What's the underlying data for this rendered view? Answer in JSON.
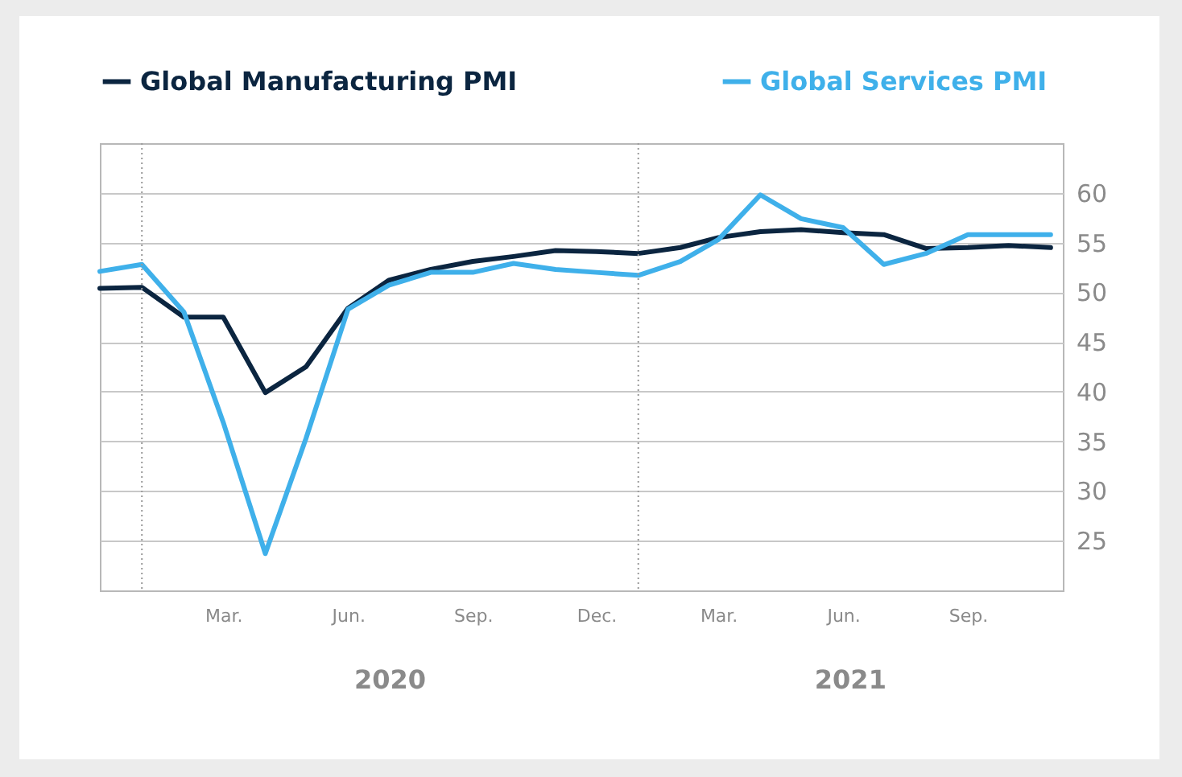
{
  "chart_data": {
    "type": "line",
    "x": [
      "2019-12",
      "2020-01",
      "2020-02",
      "2020-03",
      "2020-04",
      "2020-05",
      "2020-06",
      "2020-07",
      "2020-08",
      "2020-09",
      "2020-10",
      "2020-11",
      "2020-12",
      "2021-01",
      "2021-02",
      "2021-03",
      "2021-04",
      "2021-05",
      "2021-06",
      "2021-07",
      "2021-08",
      "2021-09",
      "2021-10",
      "2021-11"
    ],
    "series": [
      {
        "name": "Global Manufacturing PMI",
        "color": "#0b2540",
        "values": [
          50.4,
          50.5,
          47.5,
          47.5,
          39.9,
          42.5,
          48.4,
          51.2,
          52.3,
          53.1,
          53.6,
          54.2,
          54.1,
          53.9,
          54.5,
          55.5,
          56.1,
          56.3,
          56.0,
          55.8,
          54.4,
          54.5,
          54.7,
          54.5
        ]
      },
      {
        "name": "Global Services PMI",
        "color": "#3fb0ea",
        "values": [
          52.1,
          52.8,
          48.0,
          36.9,
          23.7,
          35.3,
          48.3,
          50.7,
          52.0,
          52.0,
          52.9,
          52.3,
          52.0,
          51.7,
          53.1,
          55.3,
          59.8,
          57.4,
          56.5,
          52.8,
          53.9,
          55.8,
          55.8,
          55.8
        ]
      }
    ],
    "xlim": [
      "2019-12",
      "2021-11-10"
    ],
    "xticks": [
      {
        "value": "2020-03",
        "label": "Mar."
      },
      {
        "value": "2020-06",
        "label": "Jun."
      },
      {
        "value": "2020-09",
        "label": "Sep."
      },
      {
        "value": "2020-12",
        "label": "Dec."
      },
      {
        "value": "2021-03",
        "label": "Mar."
      },
      {
        "value": "2021-06",
        "label": "Jun."
      },
      {
        "value": "2021-09",
        "label": "Sep."
      }
    ],
    "ylim": [
      20,
      65
    ],
    "yticks": [
      25,
      30,
      35,
      40,
      45,
      50,
      55,
      60
    ],
    "grid": "y",
    "legend": "top",
    "ref_lines": [
      {
        "axis": "x",
        "value": "2020-01",
        "line_style": "dotted"
      },
      {
        "axis": "x",
        "value": "2021-01",
        "line_style": "dotted"
      }
    ],
    "annotations": [
      "2020",
      "2021"
    ]
  }
}
